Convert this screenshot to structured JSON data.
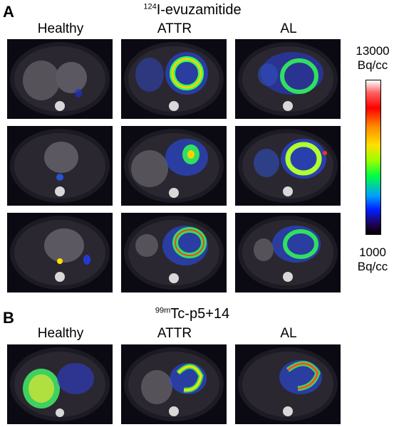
{
  "panel_a": {
    "letter": "A",
    "tracer_sup": "124",
    "tracer_main": "I-evuzamitide",
    "columns": [
      "Healthy",
      "ATTR",
      "AL"
    ]
  },
  "panel_b": {
    "letter": "B",
    "tracer_sup": "99m",
    "tracer_main": "Tc-p5+14",
    "columns": [
      "Healthy",
      "ATTR",
      "AL"
    ]
  },
  "colorbar": {
    "max_value": "13000",
    "max_unit": "Bq/cc",
    "min_value": "1000",
    "min_unit": "Bq/cc"
  }
}
